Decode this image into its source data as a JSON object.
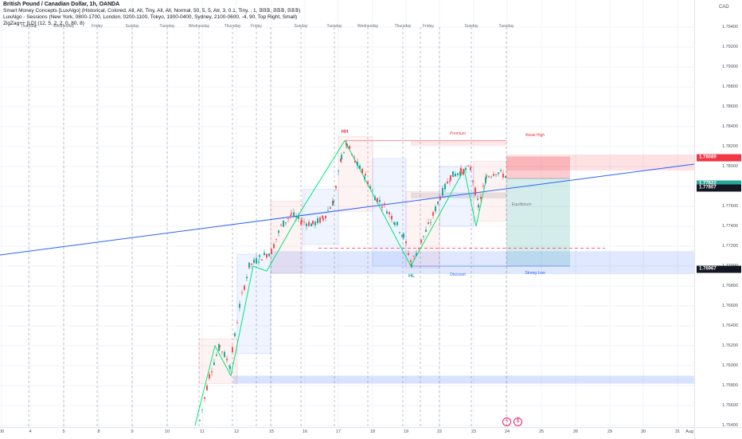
{
  "legend": {
    "title": "British Pound / Canadian Dollar, 1h, OANDA",
    "line1": "Smart Money Concepts [LuxAlgo] (Historical, Colored, All, All, Tiny, All, All, Normal, 50, 5, 5, Atr, 3, 0.1, Tiny, , 1, 𝔹𝔹𝔹, 𝔹𝔹𝔹, 𝔹𝔹𝔹)",
    "line2": "LuxAlgo - Sessions (New York, 0800-1700, London, 0200-1100, Tokyo, 1900-0400, Sydney, 2100-0600, -4, 90, Top Right, Small)",
    "line3": "ZigZag++ [LD] (12, 5, 2, 2, 0, 80, 8)"
  },
  "currency": "CAD",
  "symbol_tag": "GBPCAD",
  "price_badges": [
    {
      "value": "1.78089",
      "color": "#f23645",
      "price": 1.78089
    },
    {
      "value": "1.77822",
      "color": "#26a69a",
      "price": 1.77822
    },
    {
      "value": "1.77807",
      "color": "#131722",
      "price": 1.77782
    },
    {
      "value": "1.76967",
      "color": "#131722",
      "price": 1.76967
    }
  ],
  "price_ticks": [
    "1.79400",
    "1.79200",
    "1.79000",
    "1.78800",
    "1.78600",
    "1.78400",
    "1.78200",
    "1.78000",
    "1.77800",
    "1.77600",
    "1.77400",
    "1.77200",
    "1.77000",
    "1.76800",
    "1.76600",
    "1.76400",
    "1.76200",
    "1.76000",
    "1.75800",
    "1.75600",
    "1.75400"
  ],
  "time_ticks": [
    "00",
    "4",
    "5",
    "8",
    "9",
    "10",
    "11",
    "12",
    "15",
    "16",
    "17",
    "18",
    "19",
    "22",
    "23",
    "24",
    "25",
    "26",
    "29",
    "30",
    "31",
    "Aug"
  ],
  "day_names": [
    "Thursday",
    "Friday",
    "Sunday",
    "Tuesday",
    "Wednesday",
    "Thursday",
    "Friday",
    "Sunday",
    "Tuesday",
    "Wednesday",
    "Thursday",
    "Friday",
    "Sunday",
    "Tuesday",
    "Wednesday"
  ],
  "labels": {
    "hh": "HH",
    "hl": "HL",
    "premium": "Premium",
    "discount": "Discount",
    "equilibrium": "Equilibrium",
    "weak_high": "Weak High",
    "strong_low": "Strong Low"
  },
  "colors": {
    "bull": "#26a69a",
    "bear": "#ef5350",
    "trendline": "#2962ff",
    "zigzag": "#00e676",
    "premium_zone": "#f23645",
    "discount_zone": "#2962ff"
  },
  "icons": [
    "lightning-icon",
    "dividend-icon"
  ]
}
